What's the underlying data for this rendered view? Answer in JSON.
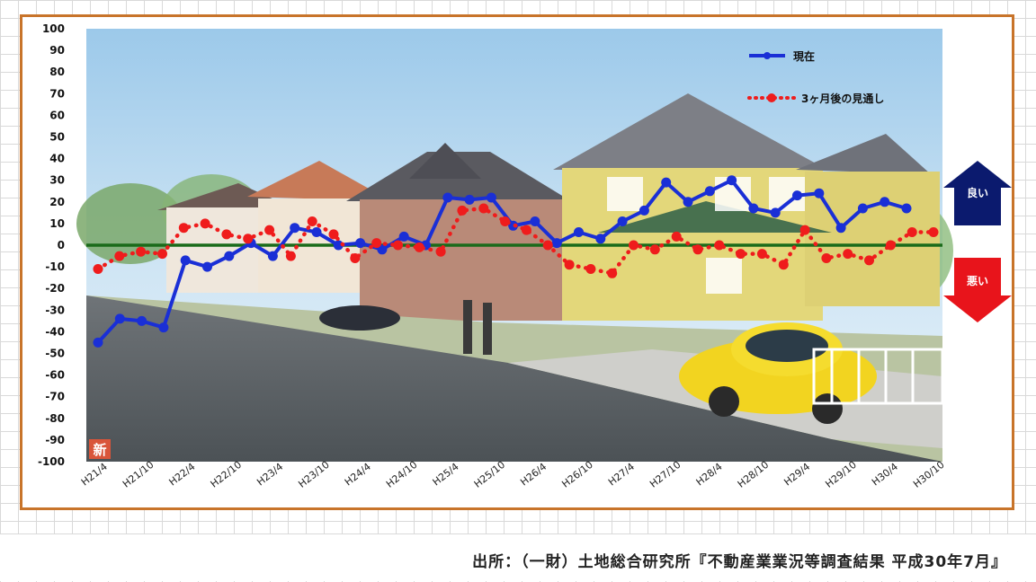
{
  "chart_data": {
    "type": "line",
    "title": "",
    "xlabel": "",
    "ylabel": "",
    "ylim": [
      -100,
      100
    ],
    "yticks": [
      100,
      90,
      80,
      70,
      60,
      50,
      40,
      30,
      20,
      10,
      0,
      -10,
      -20,
      -30,
      -40,
      -50,
      -60,
      -70,
      -80,
      -90,
      -100
    ],
    "x_tick_labels": [
      "H21/4",
      "H21/10",
      "H22/4",
      "H22/10",
      "H23/4",
      "H23/10",
      "H24/4",
      "H24/10",
      "H25/4",
      "H25/10",
      "H26/4",
      "H26/10",
      "H27/4",
      "H27/10",
      "H28/4",
      "H28/10",
      "H29/4",
      "H29/10",
      "H30/4",
      "H30/10"
    ],
    "zero_line_color": "#1a6b1a",
    "legend_position": "top-right",
    "series": [
      {
        "name": "現在",
        "style": "solid",
        "color": "#1a2fd6",
        "values": [
          -45,
          -34,
          -35,
          -38,
          -7,
          -10,
          -5,
          1,
          -5,
          8,
          6,
          0,
          1,
          -2,
          4,
          0,
          22,
          21,
          22,
          9,
          11,
          1,
          6,
          3,
          11,
          16,
          29,
          20,
          25,
          30,
          17,
          15,
          23,
          24,
          8,
          17,
          20,
          17
        ]
      },
      {
        "name": "3ヶ月後の見通し",
        "style": "dotted",
        "color": "#ef1c1c",
        "values": [
          -11,
          -5,
          -3,
          -4,
          8,
          10,
          5,
          3,
          7,
          -5,
          11,
          5,
          -6,
          1,
          0,
          -1,
          -3,
          16,
          17,
          11,
          7,
          0,
          -9,
          -11,
          -13,
          0,
          -2,
          4,
          -2,
          0,
          -4,
          -4,
          -9,
          7,
          -6,
          -4,
          -7,
          0,
          6,
          6
        ]
      }
    ]
  },
  "badges": {
    "good": "良い",
    "bad": "悪い",
    "good_color": "#0b1a6e",
    "bad_color": "#e8141b"
  },
  "corner_mark": "新",
  "source": "出所：（一財）土地総合研究所『不動産業業況等調査結果 平成30年7月』"
}
